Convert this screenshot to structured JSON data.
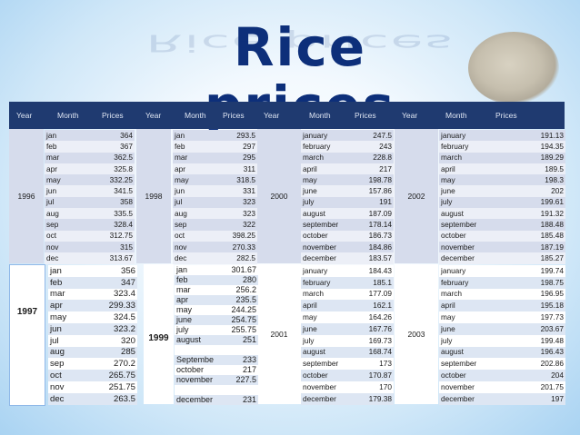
{
  "title": "Rice  prices",
  "header": [
    "Year",
    "Month",
    "Prices",
    "Year",
    "Month",
    "Prices",
    "Year",
    "Month",
    "Prices",
    "Year",
    "Month",
    "Prices"
  ],
  "blocks": [
    {
      "year": "1996",
      "months": [
        "jan",
        "feb",
        "mar",
        "apr",
        "may",
        "jun",
        "jul",
        "aug",
        "sep",
        "oct",
        "nov",
        "dec"
      ],
      "prices": [
        "364",
        "367",
        "362.5",
        "325.8",
        "332.25",
        "341.5",
        "358",
        "335.5",
        "328.4",
        "312.75",
        "315",
        "313.67"
      ]
    },
    {
      "year": "1998",
      "months": [
        "jan",
        "feb",
        "mar",
        "apr",
        "may",
        "jun",
        "jul",
        "aug",
        "sep",
        "oct",
        "nov",
        "dec"
      ],
      "prices": [
        "293.5",
        "297",
        "295",
        "311",
        "318.5",
        "331",
        "323",
        "323",
        "322",
        "398.25",
        "270.33",
        "282.5"
      ]
    },
    {
      "year": "2000",
      "months": [
        "january",
        "february",
        "march",
        "april",
        "may",
        "june",
        "july",
        "august",
        "september",
        "october",
        "november",
        "december"
      ],
      "prices": [
        "247.5",
        "243",
        "228.8",
        "217",
        "198.78",
        "157.86",
        "191",
        "187.09",
        "178.14",
        "186.73",
        "184.86",
        "183.57"
      ]
    },
    {
      "year": "2002",
      "months": [
        "january",
        "february",
        "march",
        "april",
        "may",
        "june",
        "july",
        "august",
        "september",
        "october",
        "november",
        "december"
      ],
      "prices": [
        "191.13",
        "194.35",
        "189.29",
        "189.5",
        "198.3",
        "202",
        "199.61",
        "191.32",
        "188.48",
        "185.48",
        "187.19",
        "185.27"
      ]
    },
    {
      "year": "1997",
      "months": [
        "jan",
        "feb",
        "mar",
        "apr",
        "may",
        "jun",
        "jul",
        "aug",
        "sep",
        "oct",
        "nov",
        "dec"
      ],
      "prices": [
        "356",
        "347",
        "323.4",
        "299.33",
        "324.5",
        "323.2",
        "320",
        "285",
        "270.2",
        "265.75",
        "251.75",
        "263.5"
      ]
    },
    {
      "year": "1999",
      "months": [
        "jan",
        "feb",
        "mar",
        "apr",
        "may",
        "june",
        "july",
        "august",
        "",
        "Septembe",
        "october",
        "november",
        "",
        "december"
      ],
      "prices": [
        "301.67",
        "280",
        "256.2",
        "235.5",
        "244.25",
        "254.75",
        "255.75",
        "251",
        "",
        "233",
        "217",
        "227.5",
        "",
        "231"
      ]
    },
    {
      "year": "2001",
      "months": [
        "january",
        "february",
        "march",
        "april",
        "may",
        "june",
        "july",
        "august",
        "september",
        "october",
        "november",
        "december"
      ],
      "prices": [
        "184.43",
        "185.1",
        "177.09",
        "162.1",
        "164.26",
        "167.76",
        "169.73",
        "168.74",
        "173",
        "170.87",
        "170",
        "179.38"
      ]
    },
    {
      "year": "2003",
      "months": [
        "january",
        "february",
        "march",
        "april",
        "may",
        "june",
        "july",
        "august",
        "september",
        "october",
        "november",
        "december"
      ],
      "prices": [
        "199.74",
        "198.75",
        "196.95",
        "195.18",
        "197.73",
        "203.67",
        "199.48",
        "196.43",
        "202.86",
        "204",
        "201.75",
        "197"
      ]
    }
  ]
}
